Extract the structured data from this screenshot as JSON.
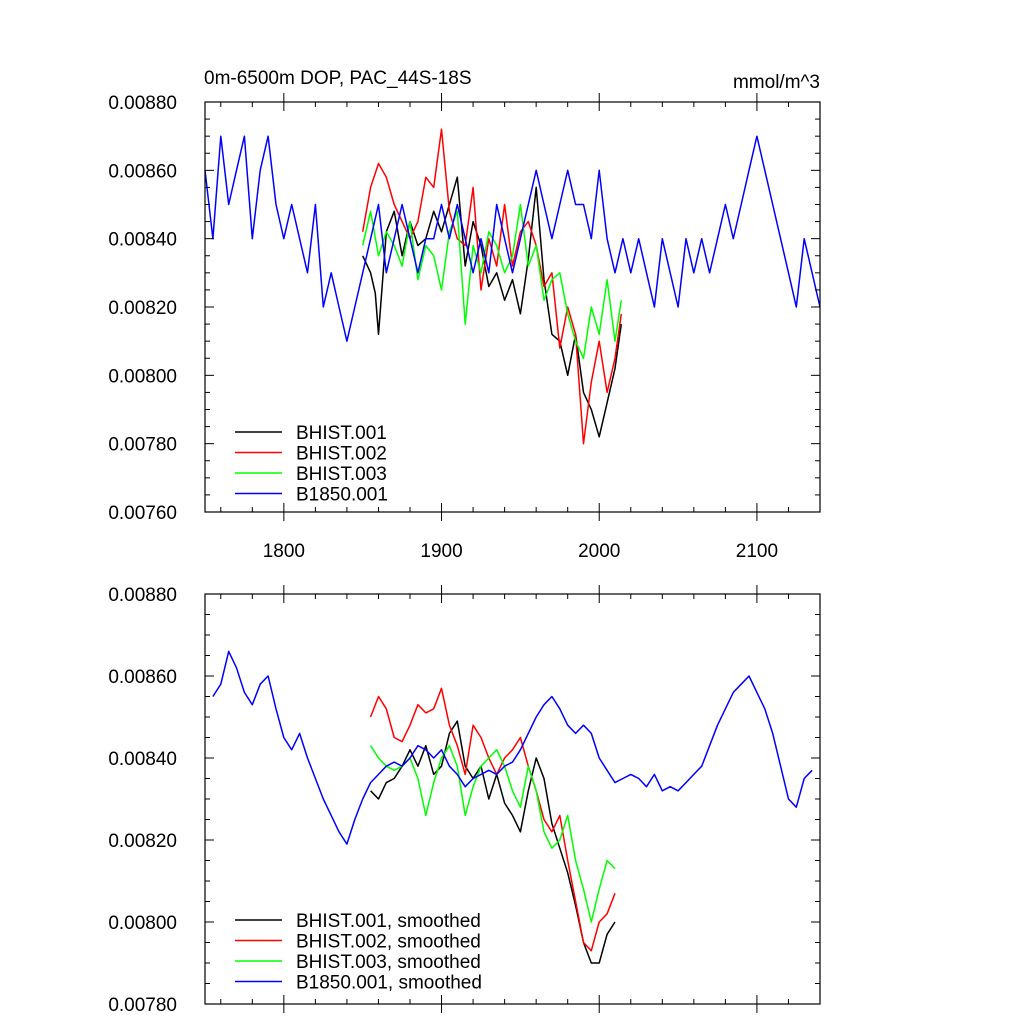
{
  "chart_data": [
    {
      "type": "line",
      "title": "0m-6500m DOP, PAC_44S-18S",
      "units": "mmol/m^3",
      "xlim": [
        1750,
        2140
      ],
      "ylim": [
        0.0076,
        0.0088
      ],
      "x_ticks": [
        1800,
        1900,
        2000,
        2100
      ],
      "x_tick_labels": [
        "1800",
        "1900",
        "2000",
        "2100"
      ],
      "y_ticks": [
        0.0076,
        0.0078,
        0.008,
        0.0082,
        0.0084,
        0.0086,
        0.0088
      ],
      "y_tick_labels": [
        "0.00760",
        "0.00780",
        "0.00800",
        "0.00820",
        "0.00840",
        "0.00860",
        "0.00880"
      ],
      "grid": false,
      "legend_position": "bottom-left",
      "series": [
        {
          "name": "BHIST.001",
          "color": "#000000",
          "x": [
            1850,
            1855,
            1858,
            1860,
            1865,
            1870,
            1875,
            1880,
            1885,
            1890,
            1895,
            1900,
            1905,
            1910,
            1915,
            1920,
            1925,
            1930,
            1935,
            1940,
            1945,
            1950,
            1955,
            1960,
            1965,
            1970,
            1975,
            1980,
            1985,
            1990,
            1995,
            2000,
            2005,
            2010,
            2014
          ],
          "y": [
            0.00835,
            0.0083,
            0.00824,
            0.00812,
            0.00842,
            0.00848,
            0.00835,
            0.00845,
            0.00838,
            0.0084,
            0.00848,
            0.00842,
            0.0085,
            0.00858,
            0.00832,
            0.00845,
            0.00838,
            0.00826,
            0.0083,
            0.00822,
            0.00828,
            0.00818,
            0.00834,
            0.00855,
            0.00828,
            0.00812,
            0.0081,
            0.008,
            0.00812,
            0.00795,
            0.0079,
            0.00782,
            0.00792,
            0.00802,
            0.00815
          ]
        },
        {
          "name": "BHIST.002",
          "color": "#ff0000",
          "x": [
            1850,
            1855,
            1860,
            1865,
            1870,
            1875,
            1880,
            1885,
            1890,
            1895,
            1900,
            1905,
            1910,
            1915,
            1920,
            1925,
            1930,
            1935,
            1940,
            1945,
            1950,
            1955,
            1960,
            1965,
            1970,
            1975,
            1980,
            1985,
            1990,
            1995,
            2000,
            2005,
            2010,
            2014
          ],
          "y": [
            0.00842,
            0.00855,
            0.00862,
            0.00858,
            0.0085,
            0.00845,
            0.0084,
            0.00845,
            0.00858,
            0.00855,
            0.00872,
            0.00848,
            0.0084,
            0.00838,
            0.00855,
            0.00825,
            0.0084,
            0.00832,
            0.0085,
            0.00832,
            0.00842,
            0.00845,
            0.00838,
            0.00826,
            0.0083,
            0.00808,
            0.0082,
            0.00812,
            0.0078,
            0.00798,
            0.0081,
            0.00795,
            0.00805,
            0.00818
          ]
        },
        {
          "name": "BHIST.003",
          "color": "#00ff00",
          "x": [
            1850,
            1855,
            1860,
            1865,
            1870,
            1875,
            1880,
            1885,
            1890,
            1895,
            1900,
            1905,
            1910,
            1915,
            1920,
            1925,
            1930,
            1935,
            1940,
            1945,
            1950,
            1955,
            1960,
            1965,
            1970,
            1975,
            1980,
            1985,
            1990,
            1995,
            2000,
            2005,
            2010,
            2014
          ],
          "y": [
            0.00838,
            0.00848,
            0.00835,
            0.00842,
            0.00838,
            0.00832,
            0.00845,
            0.00828,
            0.00838,
            0.00835,
            0.00825,
            0.00842,
            0.00848,
            0.00815,
            0.00838,
            0.0083,
            0.00842,
            0.00838,
            0.0083,
            0.00835,
            0.0085,
            0.00832,
            0.00838,
            0.00822,
            0.00828,
            0.0083,
            0.00818,
            0.0081,
            0.00805,
            0.0082,
            0.00812,
            0.00828,
            0.0081,
            0.00822
          ]
        },
        {
          "name": "B1850.001",
          "color": "#0000ff",
          "x": [
            1750,
            1755,
            1760,
            1765,
            1770,
            1775,
            1780,
            1785,
            1790,
            1795,
            1800,
            1805,
            1810,
            1815,
            1820,
            1825,
            1830,
            1835,
            1840,
            1845,
            1850,
            1855,
            1860,
            1865,
            1870,
            1875,
            1880,
            1885,
            1890,
            1895,
            1900,
            1905,
            1910,
            1915,
            1920,
            1925,
            1930,
            1935,
            1940,
            1945,
            1950,
            1955,
            1960,
            1965,
            1970,
            1975,
            1980,
            1985,
            1990,
            1995,
            2000,
            2005,
            2010,
            2015,
            2020,
            2025,
            2030,
            2035,
            2040,
            2045,
            2050,
            2055,
            2060,
            2065,
            2070,
            2075,
            2080,
            2085,
            2090,
            2095,
            2100,
            2105,
            2110,
            2115,
            2120,
            2125,
            2130,
            2135,
            2140
          ],
          "y": [
            0.0086,
            0.0084,
            0.0087,
            0.0085,
            0.0086,
            0.0087,
            0.0084,
            0.0086,
            0.0087,
            0.0085,
            0.0084,
            0.0085,
            0.0084,
            0.0083,
            0.0085,
            0.0082,
            0.0083,
            0.0082,
            0.0081,
            0.0082,
            0.0083,
            0.0084,
            0.0085,
            0.0083,
            0.0084,
            0.0085,
            0.0084,
            0.0083,
            0.0084,
            0.0084,
            0.0085,
            0.0084,
            0.0085,
            0.0084,
            0.0083,
            0.0084,
            0.0083,
            0.0085,
            0.0084,
            0.0083,
            0.0084,
            0.0085,
            0.0086,
            0.0085,
            0.0084,
            0.0085,
            0.0086,
            0.0085,
            0.0085,
            0.0084,
            0.0086,
            0.0084,
            0.0083,
            0.0084,
            0.0083,
            0.0084,
            0.0083,
            0.0082,
            0.0084,
            0.0083,
            0.0082,
            0.0084,
            0.0083,
            0.0084,
            0.0083,
            0.0084,
            0.0085,
            0.0084,
            0.0085,
            0.0086,
            0.0087,
            0.0086,
            0.0085,
            0.0084,
            0.0083,
            0.0082,
            0.0084,
            0.0083,
            0.0082
          ]
        }
      ]
    },
    {
      "type": "line",
      "xlim": [
        1750,
        2140
      ],
      "ylim": [
        0.0078,
        0.0088
      ],
      "x_ticks": [
        1800,
        1900,
        2000,
        2100
      ],
      "y_ticks": [
        0.0078,
        0.008,
        0.0082,
        0.0084,
        0.0086,
        0.0088
      ],
      "y_tick_labels": [
        "0.00780",
        "0.00800",
        "0.00820",
        "0.00840",
        "0.00860",
        "0.00880"
      ],
      "grid": false,
      "legend_position": "bottom-left",
      "series": [
        {
          "name": "BHIST.001, smoothed",
          "color": "#000000",
          "x": [
            1855,
            1860,
            1865,
            1870,
            1875,
            1880,
            1885,
            1890,
            1895,
            1900,
            1905,
            1910,
            1915,
            1920,
            1925,
            1930,
            1935,
            1940,
            1945,
            1950,
            1955,
            1960,
            1965,
            1970,
            1975,
            1980,
            1985,
            1990,
            1995,
            2000,
            2005,
            2010
          ],
          "y": [
            0.00832,
            0.0083,
            0.00834,
            0.00835,
            0.00838,
            0.00842,
            0.00838,
            0.00843,
            0.00836,
            0.00838,
            0.00846,
            0.00849,
            0.00838,
            0.00835,
            0.00838,
            0.0083,
            0.00836,
            0.00829,
            0.00826,
            0.00822,
            0.00832,
            0.0084,
            0.00835,
            0.00824,
            0.00818,
            0.00812,
            0.00804,
            0.00795,
            0.0079,
            0.0079,
            0.00797,
            0.008
          ]
        },
        {
          "name": "BHIST.002, smoothed",
          "color": "#ff0000",
          "x": [
            1855,
            1860,
            1865,
            1870,
            1875,
            1880,
            1885,
            1890,
            1895,
            1900,
            1905,
            1910,
            1915,
            1920,
            1925,
            1930,
            1935,
            1940,
            1945,
            1950,
            1955,
            1960,
            1965,
            1970,
            1975,
            1980,
            1985,
            1990,
            1995,
            2000,
            2005,
            2010
          ],
          "y": [
            0.0085,
            0.00855,
            0.00852,
            0.00845,
            0.00844,
            0.00848,
            0.00853,
            0.00851,
            0.00852,
            0.00857,
            0.00848,
            0.00843,
            0.00836,
            0.00848,
            0.00845,
            0.0084,
            0.00836,
            0.0084,
            0.00842,
            0.00845,
            0.00838,
            0.00832,
            0.00825,
            0.00822,
            0.00826,
            0.00815,
            0.00805,
            0.00795,
            0.00793,
            0.008,
            0.00802,
            0.00807
          ]
        },
        {
          "name": "BHIST.003, smoothed",
          "color": "#00ff00",
          "x": [
            1855,
            1860,
            1865,
            1870,
            1875,
            1880,
            1885,
            1890,
            1895,
            1900,
            1905,
            1910,
            1915,
            1920,
            1925,
            1930,
            1935,
            1940,
            1945,
            1950,
            1955,
            1960,
            1965,
            1970,
            1975,
            1980,
            1985,
            1990,
            1995,
            2000,
            2005,
            2010
          ],
          "y": [
            0.00843,
            0.0084,
            0.00838,
            0.00837,
            0.00838,
            0.0084,
            0.00835,
            0.00826,
            0.00834,
            0.0084,
            0.00843,
            0.00838,
            0.00826,
            0.00833,
            0.00838,
            0.0084,
            0.00842,
            0.00838,
            0.00832,
            0.00828,
            0.00838,
            0.00832,
            0.00822,
            0.00818,
            0.0082,
            0.00826,
            0.00815,
            0.00808,
            0.008,
            0.00808,
            0.00815,
            0.00813
          ]
        },
        {
          "name": "B1850.001, smoothed",
          "color": "#0000ff",
          "x": [
            1755,
            1760,
            1765,
            1770,
            1775,
            1780,
            1785,
            1790,
            1795,
            1800,
            1805,
            1810,
            1815,
            1820,
            1825,
            1830,
            1835,
            1840,
            1845,
            1850,
            1855,
            1860,
            1865,
            1870,
            1875,
            1880,
            1885,
            1890,
            1895,
            1900,
            1905,
            1910,
            1915,
            1920,
            1925,
            1930,
            1935,
            1940,
            1945,
            1950,
            1955,
            1960,
            1965,
            1970,
            1975,
            1980,
            1985,
            1990,
            1995,
            2000,
            2005,
            2010,
            2015,
            2020,
            2025,
            2030,
            2035,
            2040,
            2045,
            2050,
            2055,
            2060,
            2065,
            2070,
            2075,
            2080,
            2085,
            2090,
            2095,
            2100,
            2105,
            2110,
            2115,
            2120,
            2125,
            2130,
            2135
          ],
          "y": [
            0.00855,
            0.00858,
            0.00866,
            0.00862,
            0.00856,
            0.00853,
            0.00858,
            0.0086,
            0.00852,
            0.00845,
            0.00842,
            0.00846,
            0.0084,
            0.00835,
            0.0083,
            0.00826,
            0.00822,
            0.00819,
            0.00825,
            0.0083,
            0.00834,
            0.00836,
            0.00838,
            0.00839,
            0.00838,
            0.0084,
            0.00843,
            0.00842,
            0.0084,
            0.00842,
            0.00838,
            0.00836,
            0.00833,
            0.00835,
            0.00836,
            0.00837,
            0.00836,
            0.00838,
            0.00839,
            0.00842,
            0.00846,
            0.0085,
            0.00853,
            0.00855,
            0.00852,
            0.00848,
            0.00846,
            0.00848,
            0.00846,
            0.0084,
            0.00837,
            0.00834,
            0.00835,
            0.00836,
            0.00835,
            0.00833,
            0.00836,
            0.00832,
            0.00833,
            0.00832,
            0.00834,
            0.00836,
            0.00838,
            0.00843,
            0.00848,
            0.00852,
            0.00856,
            0.00858,
            0.0086,
            0.00856,
            0.00852,
            0.00846,
            0.00838,
            0.0083,
            0.00828,
            0.00835,
            0.00837
          ]
        }
      ]
    }
  ]
}
